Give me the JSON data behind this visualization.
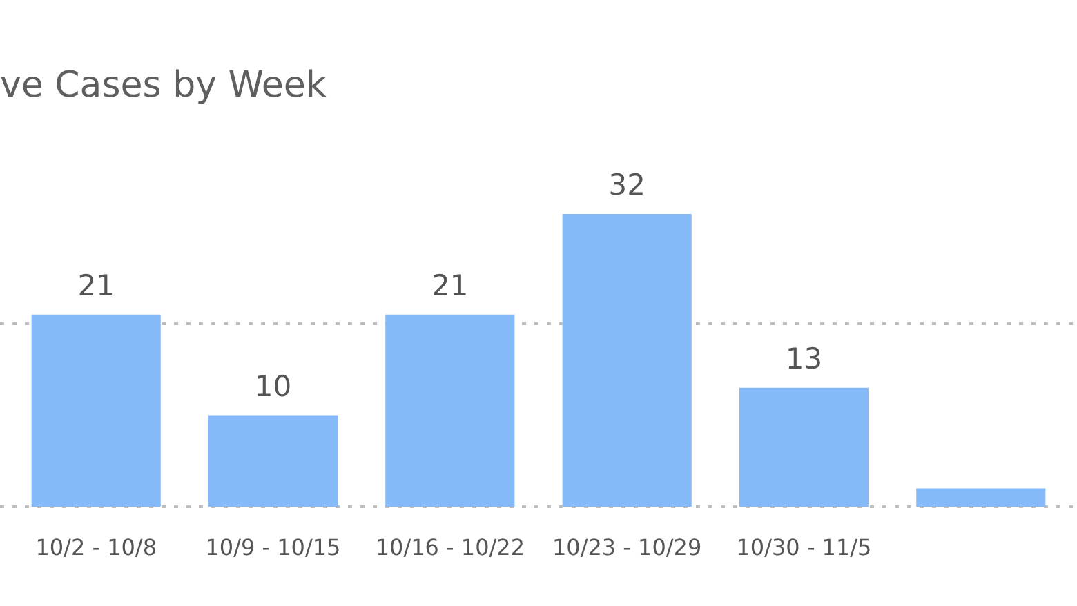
{
  "chart_data": {
    "type": "bar",
    "title": "ve Cases by Week",
    "categories": [
      "10/2 - 10/8",
      "10/9 - 10/15",
      "10/16 - 10/22",
      "10/23 - 10/29",
      "10/30 - 11/5",
      null
    ],
    "values": [
      21,
      10,
      21,
      32,
      13,
      2
    ],
    "value_labels": [
      "21",
      "10",
      "21",
      "32",
      "13",
      null
    ],
    "color": "#85b9f8",
    "tick_labels": "x",
    "ref_lines": [
      {
        "axis": "y",
        "value": 20,
        "color": "#c0c0c0",
        "line_style": "dotted"
      }
    ]
  }
}
